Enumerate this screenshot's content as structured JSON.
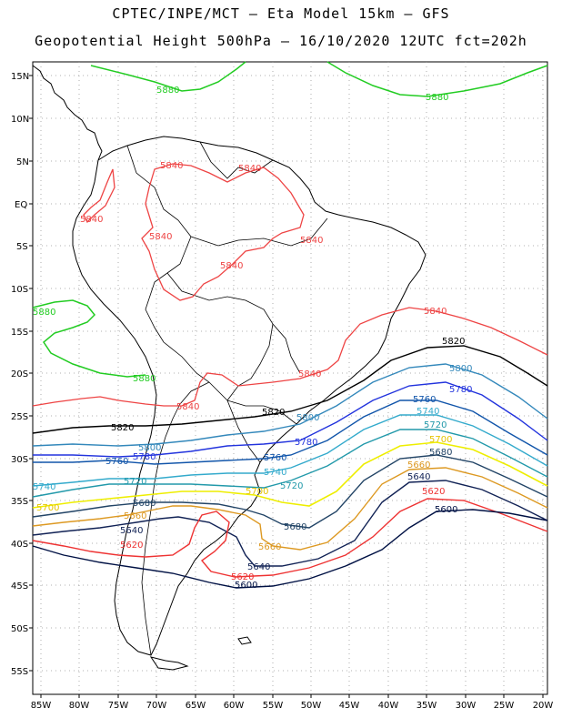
{
  "header": {
    "line1": "CPTEC/INPE/MCT –  Eta Model 15km – GFS",
    "line2": "Geopotential Height 500hPa – 16/10/2020 12UTC fct=202h"
  },
  "axes": {
    "lat_labels": [
      "15N",
      "10N",
      "5N",
      "EQ",
      "5S",
      "10S",
      "15S",
      "20S",
      "25S",
      "30S",
      "35S",
      "40S",
      "45S",
      "50S",
      "55S"
    ],
    "lon_labels": [
      "85W",
      "80W",
      "75W",
      "70W",
      "65W",
      "60W",
      "55W",
      "50W",
      "45W",
      "40W",
      "35W",
      "30W",
      "25W",
      "20W"
    ]
  },
  "colors": {
    "c5880": "#22cc22",
    "c5840": "#ee4444",
    "c5820": "#000000",
    "c5800": "#3388bb",
    "c5780": "#2233dd",
    "c5760": "#1155aa",
    "c5740": "#33aacc",
    "c5720": "#2299aa",
    "c5700": "#eeee00",
    "c5680": "#224466",
    "c5660": "#dd9922",
    "c5640": "#112255",
    "c5620": "#ee3333",
    "c5600": "#001144"
  },
  "contour_labels": {
    "l5880": "5880",
    "l5840": "5840",
    "l5820": "5820",
    "l5800": "5800",
    "l5780": "5780",
    "l5760": "5760",
    "l5740": "5740",
    "l5720": "5720",
    "l5700": "5700",
    "l5680": "5680",
    "l5660": "5660",
    "l5640": "5640",
    "l5620": "5620",
    "l5600": "5600"
  }
}
